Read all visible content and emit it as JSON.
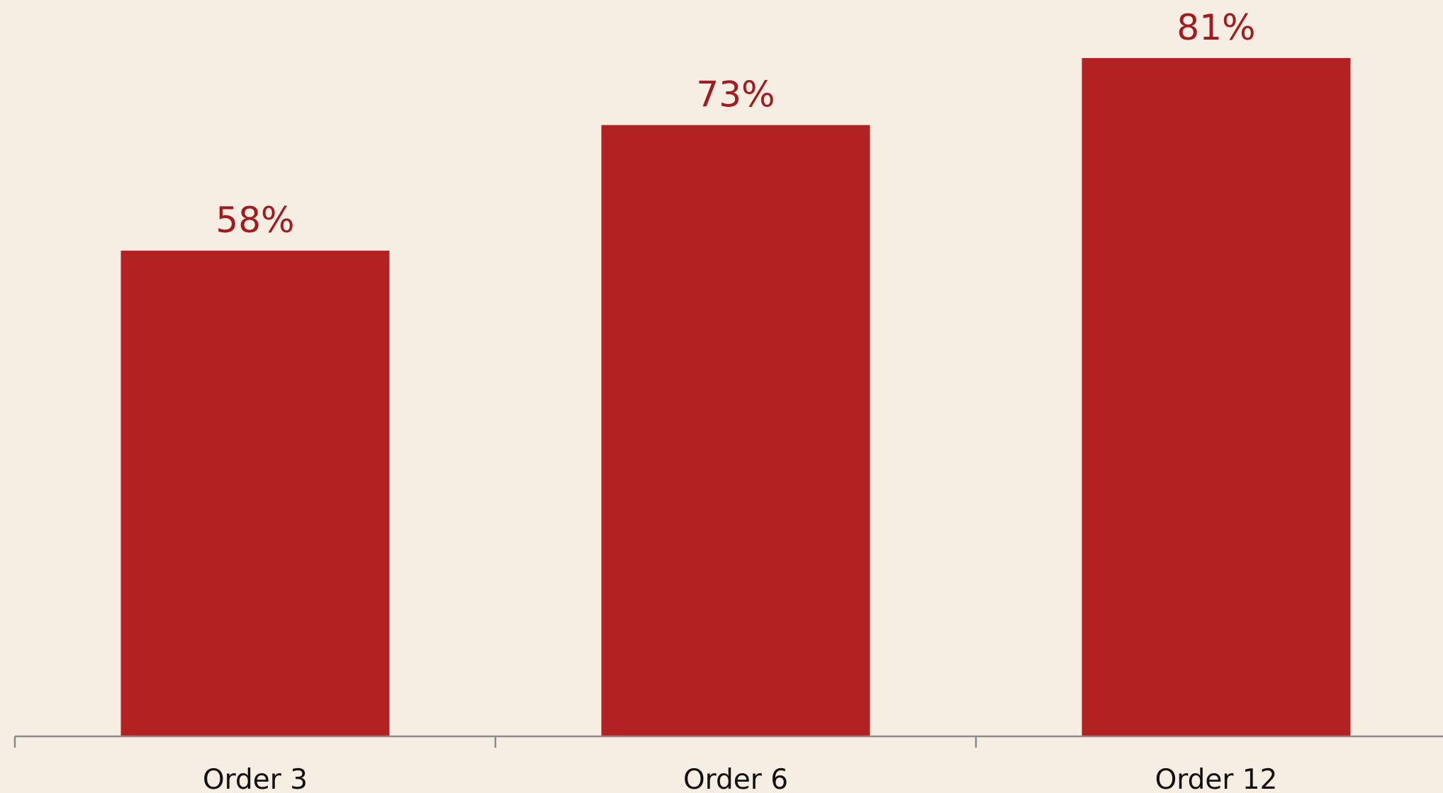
{
  "chart_data": {
    "type": "bar",
    "categories": [
      "Order 3",
      "Order 6",
      "Order 12"
    ],
    "values": [
      58,
      73,
      81
    ],
    "data_labels": [
      "58%",
      "73%",
      "81%"
    ],
    "y_unit": "%",
    "ylim": [
      0,
      81
    ],
    "title": "",
    "xlabel": "",
    "ylabel": "",
    "grid": false,
    "legend": "none",
    "colors": {
      "bar": "#b22222",
      "data_label": "#a31b1f",
      "axis": "#8a8a8a",
      "tick_label": "#111111",
      "background": "#f6eee2"
    }
  }
}
